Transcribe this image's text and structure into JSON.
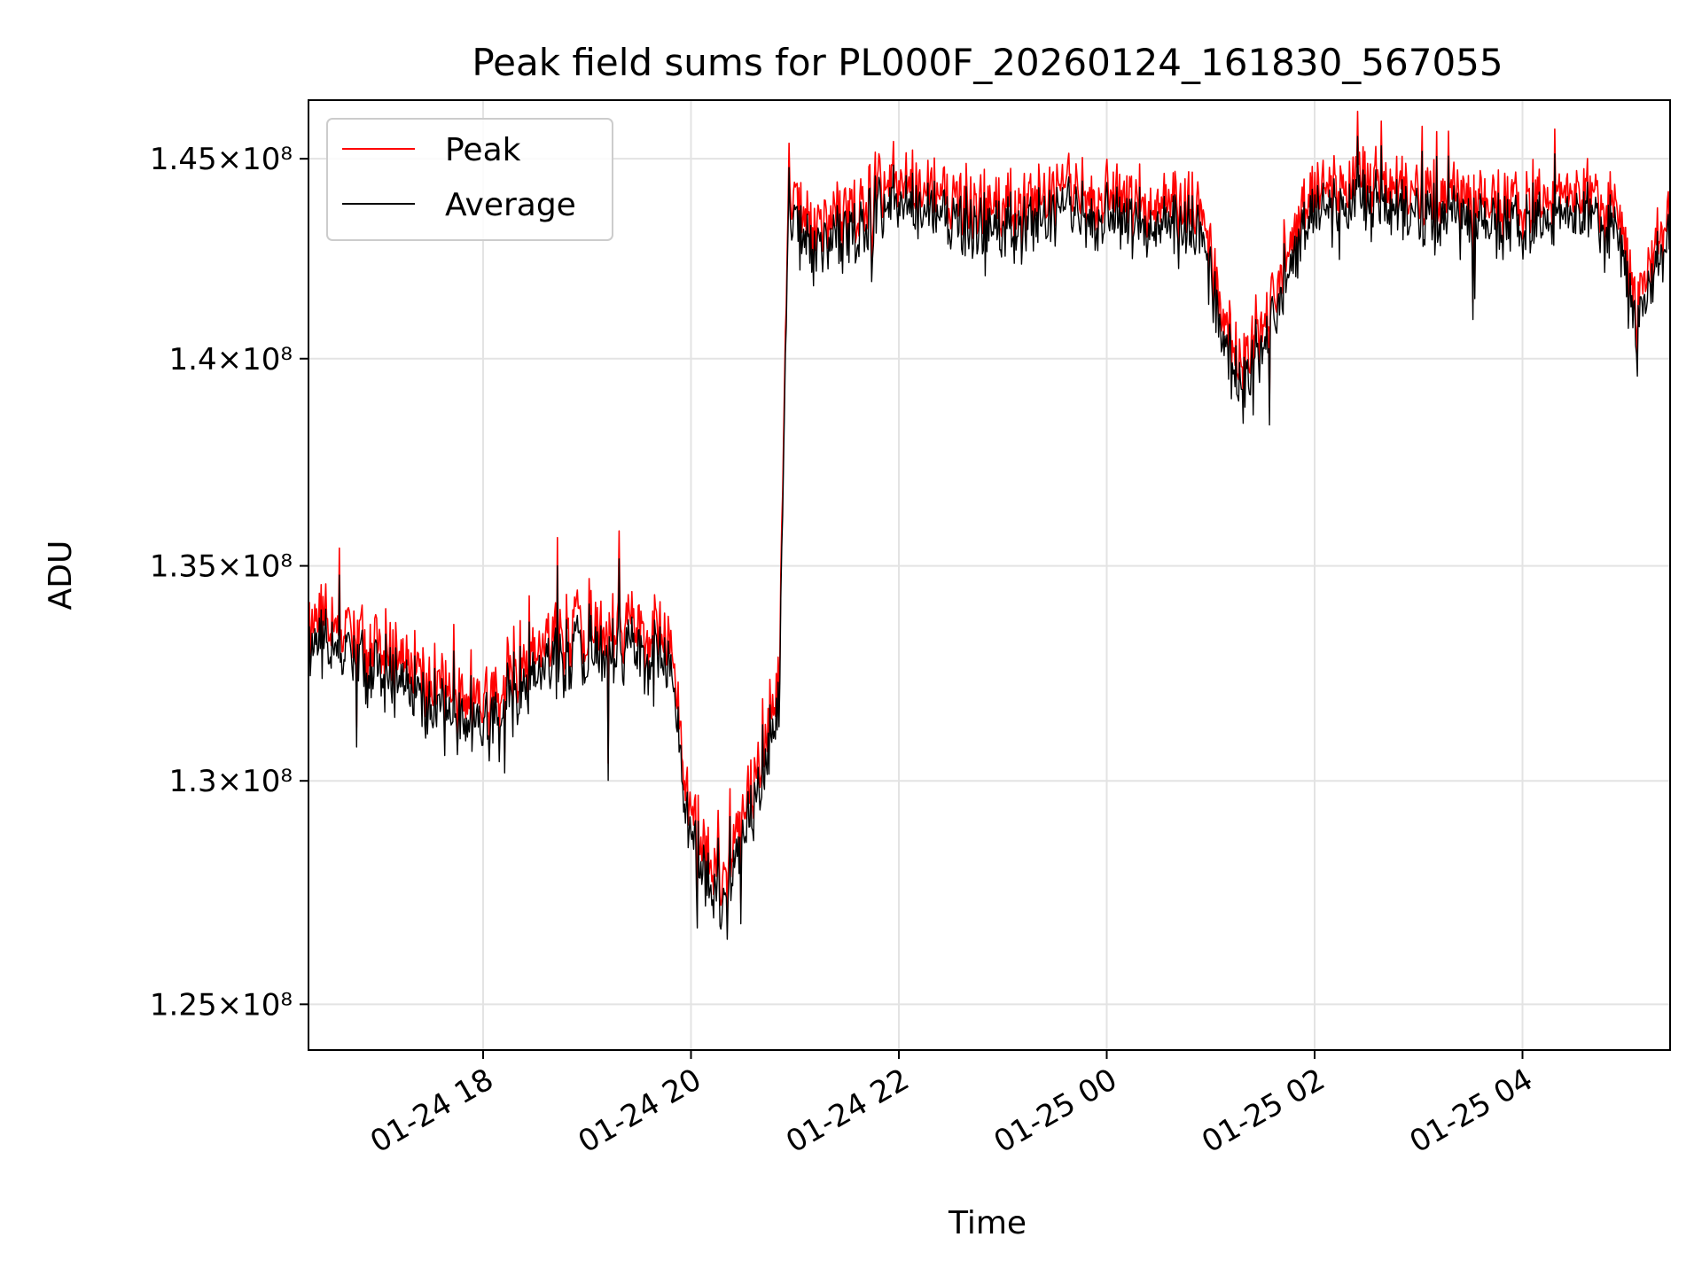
{
  "chart_data": {
    "type": "line",
    "title": "Peak field sums for PL000F_20260124_161830_567055",
    "xlabel": "Time",
    "ylabel": "ADU",
    "y_scale": "log",
    "ylim": [
      124000000,
      146500000
    ],
    "xlim_hours": [
      16.32,
      29.42
    ],
    "grid": true,
    "legend_position": "top-left",
    "y_ticks": [
      {
        "value": 125000000,
        "label": "1.25×10⁸"
      },
      {
        "value": 130000000,
        "label": "1.3×10⁸"
      },
      {
        "value": 135000000,
        "label": "1.35×10⁸"
      },
      {
        "value": 140000000,
        "label": "1.4×10⁸"
      },
      {
        "value": 145000000,
        "label": "1.45×10⁸"
      }
    ],
    "x_ticks": [
      {
        "value": 18,
        "label": "01-24 18"
      },
      {
        "value": 20,
        "label": "01-24 20"
      },
      {
        "value": 22,
        "label": "01-24 22"
      },
      {
        "value": 24,
        "label": "01-25 00"
      },
      {
        "value": 26,
        "label": "01-25 02"
      },
      {
        "value": 28,
        "label": "01-25 04"
      }
    ],
    "series": [
      {
        "name": "Peak",
        "color": "#ff0000",
        "x_hours": [
          16.32,
          16.6,
          17.0,
          17.5,
          18.0,
          18.5,
          19.0,
          19.5,
          19.8,
          20.0,
          20.3,
          20.6,
          20.85,
          20.93,
          21.2,
          21.6,
          22.0,
          22.5,
          23.0,
          23.5,
          24.0,
          24.5,
          24.9,
          25.1,
          25.3,
          25.5,
          25.8,
          26.0,
          26.5,
          27.0,
          27.5,
          28.0,
          28.5,
          28.9,
          29.1,
          29.25,
          29.42
        ],
        "values": [
          133500000,
          133300000,
          132800000,
          132200000,
          131500000,
          132800000,
          133400000,
          133200000,
          133000000,
          129000000,
          127200000,
          129800000,
          132000000,
          143800000,
          143000000,
          143400000,
          144300000,
          143900000,
          143400000,
          143800000,
          143900000,
          143700000,
          143400000,
          141200000,
          139500000,
          140300000,
          143000000,
          144000000,
          144200000,
          143800000,
          143600000,
          143700000,
          143900000,
          143600000,
          140800000,
          142200000,
          143600000
        ]
      },
      {
        "name": "Average",
        "color": "#000000",
        "x_hours": [
          16.32,
          16.6,
          17.0,
          17.5,
          18.0,
          18.5,
          19.0,
          19.5,
          19.8,
          20.0,
          20.3,
          20.6,
          20.85,
          20.93,
          21.2,
          21.6,
          22.0,
          22.5,
          23.0,
          23.5,
          24.0,
          24.5,
          24.9,
          25.1,
          25.3,
          25.5,
          25.8,
          26.0,
          26.5,
          27.0,
          27.5,
          28.0,
          28.5,
          28.9,
          29.1,
          29.25,
          29.42
        ],
        "values": [
          133200000,
          133000000,
          132500000,
          131900000,
          131200000,
          132500000,
          133100000,
          132900000,
          132700000,
          128700000,
          126900000,
          129500000,
          131700000,
          143500000,
          142700000,
          143100000,
          144000000,
          143600000,
          143100000,
          143500000,
          143600000,
          143400000,
          143100000,
          140900000,
          139200000,
          140000000,
          142700000,
          143700000,
          143900000,
          143500000,
          143300000,
          143400000,
          143600000,
          143300000,
          140500000,
          141900000,
          143300000
        ]
      }
    ]
  }
}
